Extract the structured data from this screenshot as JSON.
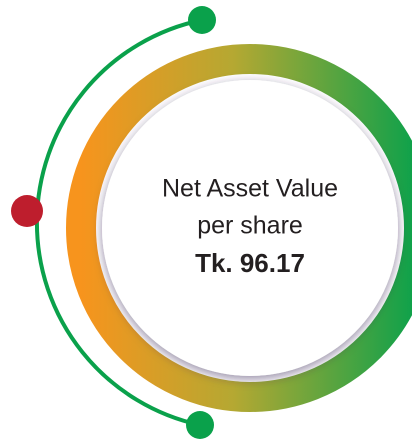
{
  "label_lines": [
    "Net Asset Value",
    "per share"
  ],
  "value": "Tk. 96.17"
}
